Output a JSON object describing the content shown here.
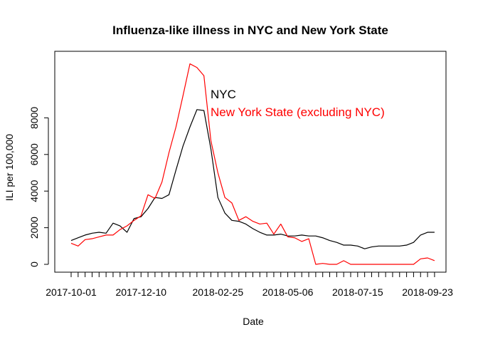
{
  "chart_data": {
    "type": "line",
    "title": "Influenza-like illness in NYC and New York State",
    "xlabel": "Date",
    "ylabel": "ILI per 100,000",
    "x": [
      "2017-10-01",
      "2017-10-08",
      "2017-10-15",
      "2017-10-22",
      "2017-10-29",
      "2017-11-05",
      "2017-11-12",
      "2017-11-19",
      "2017-11-26",
      "2017-12-03",
      "2017-12-10",
      "2017-12-17",
      "2017-12-24",
      "2017-12-31",
      "2018-01-07",
      "2018-01-14",
      "2018-01-21",
      "2018-01-28",
      "2018-02-04",
      "2018-02-11",
      "2018-02-18",
      "2018-02-25",
      "2018-03-04",
      "2018-03-11",
      "2018-03-18",
      "2018-03-25",
      "2018-04-01",
      "2018-04-08",
      "2018-04-15",
      "2018-04-22",
      "2018-04-29",
      "2018-05-06",
      "2018-05-13",
      "2018-05-20",
      "2018-05-27",
      "2018-06-03",
      "2018-06-10",
      "2018-06-17",
      "2018-06-24",
      "2018-07-01",
      "2018-07-08",
      "2018-07-15",
      "2018-07-22",
      "2018-07-29",
      "2018-08-05",
      "2018-08-12",
      "2018-08-19",
      "2018-08-26",
      "2018-09-02",
      "2018-09-09",
      "2018-09-16",
      "2018-09-23",
      "2018-09-30"
    ],
    "x_tick_labels": [
      "2017-10-01",
      "2017-12-10",
      "2018-02-25",
      "2018-05-06",
      "2018-07-15",
      "2018-09-23"
    ],
    "y_ticks": [
      0,
      2000,
      4000,
      6000,
      8000
    ],
    "y_tick_labels": [
      "0",
      "2000",
      "4000",
      "6000",
      "8000"
    ],
    "ylim": [
      0,
      11000
    ],
    "series": [
      {
        "name": "NYC",
        "color": "#000000",
        "values": [
          1300,
          1450,
          1600,
          1700,
          1750,
          1700,
          2250,
          2100,
          1750,
          2500,
          2600,
          3050,
          3650,
          3600,
          3800,
          5150,
          6450,
          7500,
          8450,
          8400,
          6300,
          3650,
          2800,
          2400,
          2350,
          2200,
          1950,
          1750,
          1600,
          1600,
          1650,
          1550,
          1550,
          1600,
          1550,
          1550,
          1450,
          1300,
          1200,
          1050,
          1050,
          1000,
          850,
          950,
          1000,
          1000,
          1000,
          1000,
          1050,
          1200,
          1600,
          1750,
          1750
        ]
      },
      {
        "name": "New York State (excluding NYC)",
        "color": "#ff0000",
        "values": [
          1150,
          1000,
          1350,
          1400,
          1500,
          1600,
          1600,
          1900,
          2100,
          2400,
          2650,
          3800,
          3600,
          4500,
          6100,
          7500,
          9200,
          10950,
          10750,
          10300,
          6750,
          5000,
          3650,
          3350,
          2400,
          2600,
          2350,
          2200,
          2250,
          1650,
          2200,
          1500,
          1450,
          1250,
          1400,
          0,
          50,
          0,
          0,
          200,
          0,
          0,
          0,
          0,
          0,
          0,
          0,
          0,
          0,
          0,
          300,
          350,
          200
        ]
      }
    ]
  }
}
